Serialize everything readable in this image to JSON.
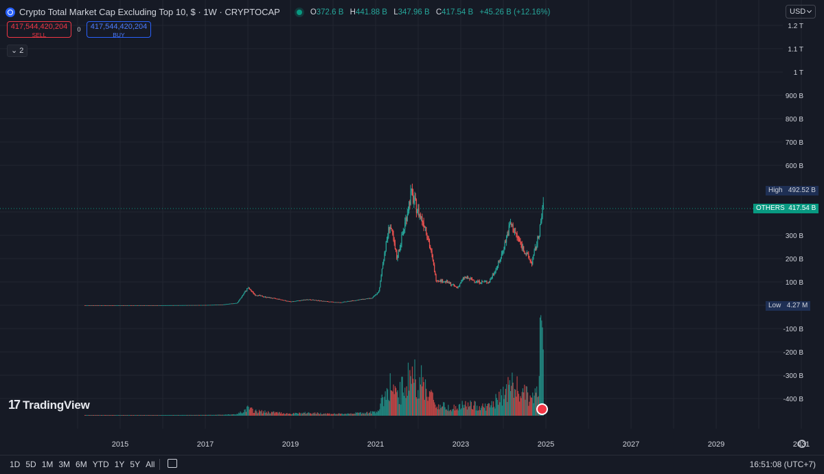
{
  "header": {
    "title": "Crypto Total Market Cap Excluding Top 10, $ · 1W · CRYPTOCAP",
    "ohlc": [
      {
        "k": "O",
        "v": "372.6 B"
      },
      {
        "k": "H",
        "v": "441.88 B"
      },
      {
        "k": "L",
        "v": "347.96 B"
      },
      {
        "k": "C",
        "v": "417.54 B"
      }
    ],
    "change": "+45.26 B (+12.16%)"
  },
  "trade": {
    "sell_price": "417,544,420,204",
    "sell_label": "SELL",
    "spread": "0",
    "buy_price": "417,544,420,204",
    "buy_label": "BUY"
  },
  "indicators_toggle": "2",
  "currency": "USD",
  "labels": {
    "high_label": "High",
    "high_value": "492.52 B",
    "symbol": "OTHERS",
    "last_value": "417.54 B",
    "low_label": "Low",
    "low_value": "4.27 M"
  },
  "price_axis": [
    "1.2 T",
    "1.1 T",
    "1 T",
    "900 B",
    "800 B",
    "700 B",
    "600 B",
    "300 B",
    "200 B",
    "100 B",
    "-100 B",
    "-200 B",
    "-300 B",
    "-400 B"
  ],
  "time_axis": [
    "2015",
    "2017",
    "2019",
    "2021",
    "2023",
    "2025",
    "2027",
    "2029",
    "2031"
  ],
  "ranges": [
    "1D",
    "5D",
    "1M",
    "3M",
    "6M",
    "YTD",
    "1Y",
    "5Y",
    "All"
  ],
  "clock": "16:51:08 (UTC+7)",
  "logo_text": "TradingView",
  "colors": {
    "bg": "#161a25",
    "up": "#26a69a",
    "down": "#ef5350",
    "grid": "#222631"
  },
  "chart_data": {
    "type": "candlestick",
    "y_unit": "B USD",
    "series": [
      {
        "name": "price",
        "points": [
          [
            "2014-03",
            0.005
          ],
          [
            "2015-01",
            0.005
          ],
          [
            "2016-01",
            0.005
          ],
          [
            "2017-01",
            1
          ],
          [
            "2017-06",
            3
          ],
          [
            "2017-10",
            10
          ],
          [
            "2018-01",
            75
          ],
          [
            "2018-03",
            45
          ],
          [
            "2018-06",
            35
          ],
          [
            "2018-10",
            25
          ],
          [
            "2019-01",
            15
          ],
          [
            "2019-06",
            25
          ],
          [
            "2019-12",
            15
          ],
          [
            "2020-03",
            12
          ],
          [
            "2020-09",
            25
          ],
          [
            "2020-12",
            30
          ],
          [
            "2021-02",
            60
          ],
          [
            "2021-03",
            180
          ],
          [
            "2021-05",
            350
          ],
          [
            "2021-07",
            200
          ],
          [
            "2021-09",
            330
          ],
          [
            "2021-11",
            480
          ],
          [
            "2022-01",
            400
          ],
          [
            "2022-03",
            340
          ],
          [
            "2022-05",
            200
          ],
          [
            "2022-06",
            110
          ],
          [
            "2022-09",
            100
          ],
          [
            "2022-12",
            75
          ],
          [
            "2023-02",
            120
          ],
          [
            "2023-06",
            100
          ],
          [
            "2023-09",
            100
          ],
          [
            "2023-12",
            190
          ],
          [
            "2024-03",
            350
          ],
          [
            "2024-06",
            260
          ],
          [
            "2024-09",
            180
          ],
          [
            "2024-11",
            300
          ],
          [
            "2024-12",
            417.54
          ]
        ]
      }
    ],
    "volume_note": "volume bars shown beneath price"
  }
}
